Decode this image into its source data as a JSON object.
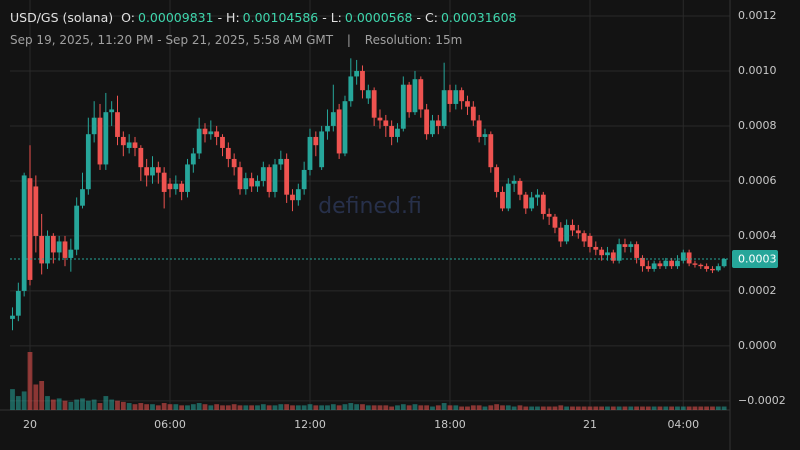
{
  "chart_data": {
    "type": "candlestick",
    "title": "USD/GS (solana)",
    "summary": [
      {
        "label": "O:",
        "value": 9.831e-05
      },
      {
        "label": "- H:",
        "value": 0.00104586
      },
      {
        "label": "- L:",
        "value": 5.68e-05
      },
      {
        "label": "- C:",
        "value": 0.00031608
      }
    ],
    "subtitle": "Sep 19, 2025, 11:20 PM - Sep 21, 2025, 5:58 AM GMT",
    "separator": "|",
    "resolution": "Resolution: 15m",
    "watermark": "defined.fi",
    "up_color": "#26a69a",
    "down_color": "#ef5350",
    "price_line": {
      "value": 0.00031608,
      "label": "0.0003"
    },
    "ylim": [
      -0.000233,
      0.001258
    ],
    "yticks": [
      0.0012,
      {
        "value": 0.001,
        "label": "0.0010"
      },
      {
        "value": 0.0008,
        "label": "0.0008"
      },
      {
        "value": 0.0006,
        "label": "0.0006"
      },
      {
        "value": 0.0004,
        "label": "0.0004"
      },
      {
        "value": 0.0002,
        "label": "0.0002"
      },
      {
        "value": 0,
        "label": "0.0000"
      },
      {
        "value": -0.0002,
        "label": "−0.0002"
      }
    ],
    "grid": true,
    "categories": [
      null,
      null,
      null,
      "20",
      null,
      null,
      null,
      null,
      null,
      null,
      null,
      null,
      null,
      null,
      null,
      null,
      null,
      null,
      null,
      null,
      null,
      null,
      null,
      null,
      null,
      null,
      null,
      "06:00",
      null,
      null,
      null,
      null,
      null,
      null,
      null,
      null,
      null,
      null,
      null,
      null,
      null,
      null,
      null,
      null,
      null,
      null,
      null,
      null,
      null,
      null,
      null,
      "12:00",
      null,
      null,
      null,
      null,
      null,
      null,
      null,
      null,
      null,
      null,
      null,
      null,
      null,
      null,
      null,
      null,
      null,
      null,
      null,
      null,
      null,
      null,
      null,
      "18:00",
      null,
      null,
      null,
      null,
      null,
      null,
      null,
      null,
      null,
      null,
      null,
      null,
      null,
      null,
      null,
      null,
      null,
      null,
      null,
      null,
      null,
      null,
      null,
      "21",
      null,
      null,
      null,
      null,
      null,
      null,
      null,
      null,
      null,
      null,
      null,
      null,
      null,
      null,
      null,
      "04:00",
      null,
      null,
      null,
      null,
      null,
      null,
      null
    ],
    "open": [
      9.831e-05,
      0.00011,
      0.0002,
      0.00061,
      0.00058,
      0.0004,
      0.0003,
      0.0004,
      0.00034,
      0.00038,
      0.00032,
      0.00035,
      0.00051,
      0.00057,
      0.00077,
      0.00083,
      0.00066,
      0.00085,
      0.00085,
      0.00076,
      0.00072,
      0.00074,
      0.00072,
      0.00065,
      0.00062,
      0.00065,
      0.00063,
      0.00059,
      0.00057,
      0.00059,
      0.00056,
      0.00066,
      0.0007,
      0.00079,
      0.00077,
      0.00078,
      0.00076,
      0.00072,
      0.00068,
      0.00065,
      0.00057,
      0.00061,
      0.00058,
      0.0006,
      0.00065,
      0.00056,
      0.00066,
      0.00068,
      0.00055,
      0.00053,
      0.00057,
      0.00064,
      0.00076,
      0.00065,
      0.00078,
      0.0008,
      0.00086,
      0.0007,
      0.00089,
      0.00098,
      0.001,
      0.0009,
      0.00093,
      0.00083,
      0.00082,
      0.0008,
      0.00076,
      0.00079,
      0.00095,
      0.00085,
      0.00097,
      0.00086,
      0.00077,
      0.00082,
      0.0008,
      0.00093,
      0.00088,
      0.00093,
      0.00089,
      0.00087,
      0.00082,
      0.00076,
      0.00077,
      0.00065,
      0.00056,
      0.0005,
      0.00059,
      0.0006,
      0.00055,
      0.0005,
      0.00054,
      0.00055,
      0.00048,
      0.00047,
      0.00043,
      0.00038,
      0.00044,
      0.00042,
      0.00041,
      0.0004,
      0.00036,
      0.00035,
      0.00033,
      0.00034,
      0.00031,
      0.00037,
      0.00036,
      0.00037,
      0.00032,
      0.00029,
      0.00028,
      0.0003,
      0.00029,
      0.00031,
      0.00029,
      0.00031,
      0.00034,
      0.0003,
      0.000295,
      0.00029,
      0.00028,
      0.000275,
      0.00029
    ],
    "high": [
      0.00014,
      0.00023,
      0.00063,
      0.00073,
      0.00062,
      0.00048,
      0.00042,
      0.00041,
      0.0004,
      0.0004,
      0.00039,
      0.00054,
      0.00063,
      0.00083,
      0.00089,
      0.00088,
      0.00092,
      0.00089,
      0.00091,
      0.00078,
      0.00077,
      0.00076,
      0.00073,
      0.00068,
      0.00069,
      0.00067,
      0.00065,
      0.00061,
      0.00062,
      0.0006,
      0.00068,
      0.00072,
      0.00083,
      0.00081,
      0.00082,
      0.0008,
      0.00077,
      0.00074,
      0.0007,
      0.00067,
      0.00063,
      0.00063,
      0.00062,
      0.00067,
      0.00066,
      0.00068,
      0.00071,
      0.0007,
      0.00057,
      0.00059,
      0.00067,
      0.00079,
      0.00078,
      0.0008,
      0.00086,
      0.00095,
      0.00088,
      0.00091,
      0.00104586,
      0.00104,
      0.00102,
      0.00095,
      0.00094,
      0.00086,
      0.00084,
      0.00082,
      0.00081,
      0.00098,
      0.00096,
      0.001,
      0.00098,
      0.00088,
      0.00084,
      0.00084,
      0.00103,
      0.00095,
      0.00095,
      0.00094,
      0.00091,
      0.00089,
      0.00084,
      0.00079,
      0.00078,
      0.00066,
      0.00058,
      0.00061,
      0.00062,
      0.00061,
      0.00056,
      0.00056,
      0.00057,
      0.00056,
      0.0005,
      0.00048,
      0.00045,
      0.00046,
      0.00046,
      0.00044,
      0.00042,
      0.00041,
      0.00038,
      0.00036,
      0.00036,
      0.00035,
      0.00039,
      0.00039,
      0.00038,
      0.00038,
      0.00033,
      0.00031,
      0.00031,
      0.00031,
      0.00032,
      0.00032,
      0.00033,
      0.00035,
      0.00035,
      0.00031,
      0.0003,
      0.0003,
      0.00029,
      0.0003,
      0.00032
    ],
    "low": [
      5.68e-05,
      9e-05,
      0.00018,
      0.00022,
      0.00034,
      0.00026,
      0.00028,
      0.0003,
      0.00031,
      0.00029,
      0.00027,
      0.00033,
      0.0005,
      0.00055,
      0.00074,
      0.00064,
      0.00064,
      0.0008,
      0.00073,
      0.00069,
      0.0007,
      0.00069,
      0.0006,
      0.00058,
      0.00059,
      0.00059,
      0.0005,
      0.00054,
      0.00055,
      0.00053,
      0.00054,
      0.00063,
      0.00068,
      0.00074,
      0.00075,
      0.00073,
      0.00069,
      0.00065,
      0.00062,
      0.00055,
      0.00055,
      0.00056,
      0.00056,
      0.00058,
      0.00054,
      0.00054,
      0.00064,
      0.00052,
      0.00049,
      0.00051,
      0.00055,
      0.00062,
      0.00069,
      0.00064,
      0.00075,
      0.00078,
      0.00068,
      0.00069,
      0.00087,
      0.00095,
      0.0009,
      0.00088,
      0.0008,
      0.00079,
      0.00076,
      0.00073,
      0.00074,
      0.00078,
      0.00083,
      0.00084,
      0.00083,
      0.00075,
      0.00076,
      0.00077,
      0.00079,
      0.00085,
      0.00086,
      0.00086,
      0.00084,
      0.0008,
      0.00074,
      0.00073,
      0.00063,
      0.00054,
      0.00049,
      0.00049,
      0.00056,
      0.00053,
      0.00048,
      0.00049,
      0.00051,
      0.00046,
      0.00044,
      0.00041,
      0.00036,
      0.00037,
      0.0004,
      0.00039,
      0.00036,
      0.00034,
      0.00033,
      0.00031,
      0.00031,
      0.0003,
      0.0003,
      0.00034,
      0.00034,
      0.0003,
      0.00027,
      0.00027,
      0.00027,
      0.00028,
      0.00028,
      0.00028,
      0.00028,
      0.0003,
      0.00029,
      0.000285,
      0.00028,
      0.00027,
      0.000265,
      0.00027,
      0.000285
    ],
    "close": [
      0.00011,
      0.0002,
      0.00062,
      0.00024,
      0.0004,
      0.0003,
      0.0004,
      0.00034,
      0.00038,
      0.00032,
      0.00035,
      0.00051,
      0.00057,
      0.00077,
      0.00083,
      0.00066,
      0.00085,
      0.00086,
      0.00076,
      0.00073,
      0.00074,
      0.00072,
      0.00065,
      0.00062,
      0.00065,
      0.00063,
      0.00056,
      0.00057,
      0.00059,
      0.00056,
      0.00066,
      0.0007,
      0.00079,
      0.00077,
      0.00078,
      0.00076,
      0.00072,
      0.00068,
      0.00065,
      0.00057,
      0.00061,
      0.00058,
      0.0006,
      0.00065,
      0.00056,
      0.00066,
      0.00068,
      0.00055,
      0.00053,
      0.00057,
      0.00064,
      0.00076,
      0.00073,
      0.00078,
      0.0008,
      0.00085,
      0.0007,
      0.00089,
      0.00098,
      0.001,
      0.00093,
      0.00093,
      0.00083,
      0.00082,
      0.0008,
      0.00076,
      0.00079,
      0.00095,
      0.00085,
      0.00097,
      0.00086,
      0.00077,
      0.00082,
      0.0008,
      0.00093,
      0.00088,
      0.00093,
      0.00089,
      0.00087,
      0.00082,
      0.00076,
      0.00077,
      0.00065,
      0.00056,
      0.0005,
      0.00059,
      0.0006,
      0.00055,
      0.0005,
      0.00054,
      0.00055,
      0.00048,
      0.00047,
      0.00043,
      0.00038,
      0.00044,
      0.00042,
      0.00041,
      0.00038,
      0.00036,
      0.00035,
      0.00033,
      0.00034,
      0.00031,
      0.00037,
      0.00036,
      0.00037,
      0.00032,
      0.00029,
      0.00028,
      0.0003,
      0.00029,
      0.00031,
      0.00029,
      0.00031,
      0.00034,
      0.0003,
      0.000295,
      0.00029,
      0.00028,
      0.000275,
      0.00029,
      0.00031608
    ],
    "volume": [
      18,
      12,
      16,
      50,
      22,
      25,
      12,
      9,
      10,
      8,
      7,
      9,
      10,
      8,
      9,
      6,
      12,
      9,
      8,
      7,
      6,
      5,
      6,
      5,
      5,
      4,
      6,
      5,
      5,
      4,
      4,
      5,
      6,
      5,
      4,
      5,
      4,
      4,
      5,
      4,
      4,
      4,
      4,
      5,
      4,
      4,
      5,
      5,
      4,
      4,
      4,
      5,
      4,
      4,
      4,
      5,
      4,
      5,
      6,
      5,
      5,
      4,
      4,
      4,
      4,
      3,
      4,
      5,
      4,
      5,
      4,
      4,
      3,
      4,
      6,
      4,
      4,
      3,
      3,
      4,
      4,
      3,
      4,
      5,
      4,
      4,
      3,
      4,
      3,
      3,
      3,
      3,
      3,
      3,
      4,
      3,
      3,
      3,
      3,
      3,
      3,
      3,
      3,
      3,
      3,
      3,
      3,
      3,
      3,
      3,
      3,
      3,
      3,
      3,
      3,
      3,
      3,
      3,
      3,
      3,
      3,
      3,
      3
    ]
  }
}
